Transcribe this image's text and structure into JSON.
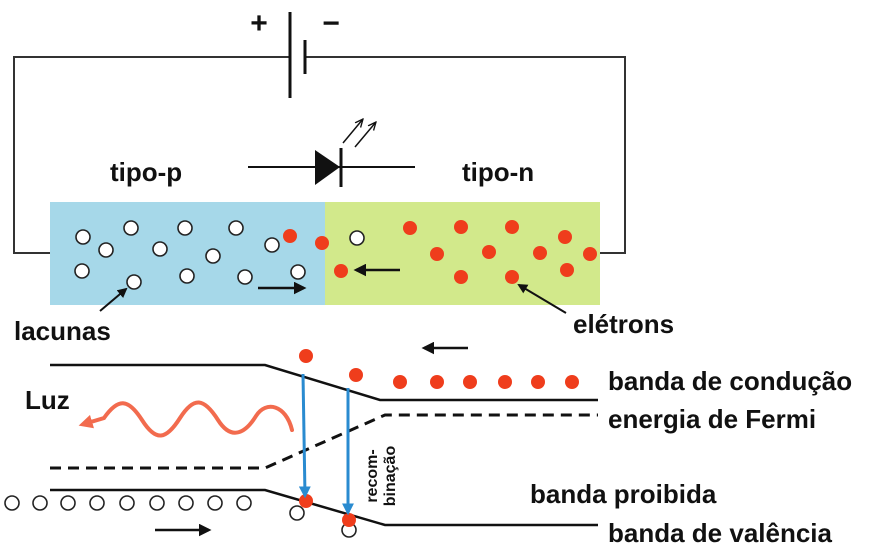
{
  "battery": {
    "plus": "+",
    "minus": "−"
  },
  "regions": {
    "p_label": "tipo-p",
    "n_label": "tipo-n"
  },
  "carriers": {
    "holes_label": "lacunas",
    "electrons_label": "elétrons"
  },
  "bands": {
    "conduction": "banda de condução",
    "fermi": "energia de Fermi",
    "gap": "banda proibida",
    "valence": "banda de valência"
  },
  "light_label": "Luz",
  "recombination": {
    "line1": "recom-",
    "line2": "binação"
  },
  "colors": {
    "p_region": "#a6d8e9",
    "n_region": "#d2e98b",
    "electron": "#ef3d1c",
    "hole_fill": "#ffffff",
    "recombination_arrow": "#2a8bd0",
    "light_wave": "#f26b4e",
    "wire": "#333333"
  }
}
